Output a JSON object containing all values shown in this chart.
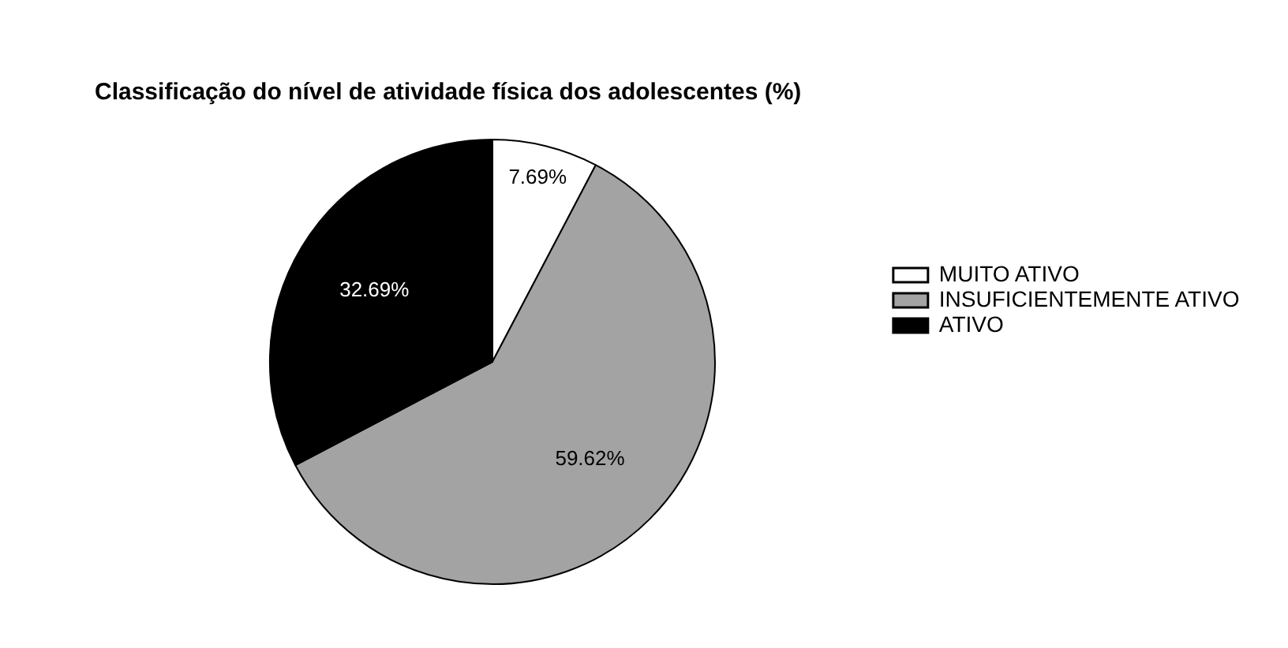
{
  "chart_data": {
    "type": "pie",
    "title": "Classificação do nível de atividade física dos adolescentes (%)",
    "categories": [
      "MUITO ATIVO",
      "INSUFICIENTEMENTE ATIVO",
      "ATIVO"
    ],
    "values": [
      7.69,
      59.62,
      32.69
    ],
    "value_labels": [
      "7.69%",
      "59.62%",
      "32.69%"
    ],
    "colors": [
      "#ffffff",
      "#a3a3a3",
      "#000000"
    ],
    "legend": "right"
  }
}
